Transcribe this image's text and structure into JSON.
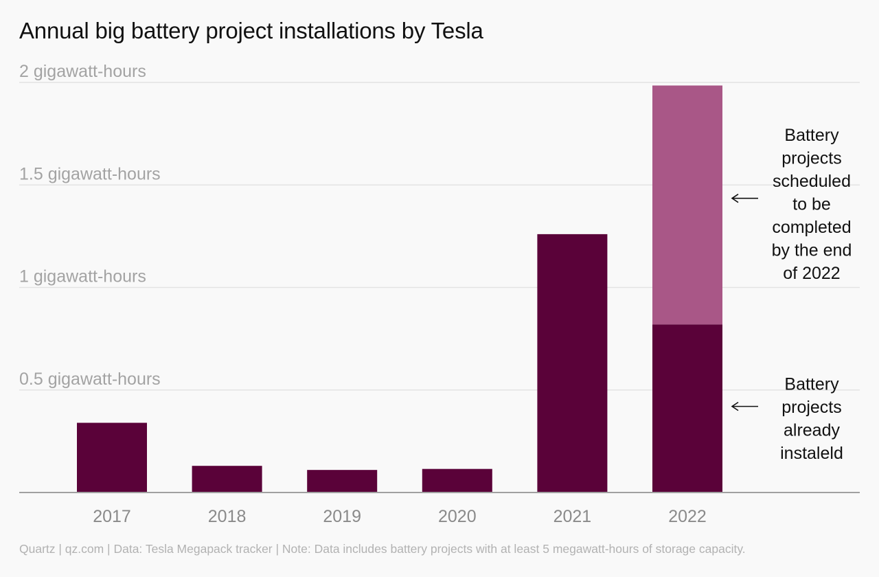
{
  "title": "Annual big battery project installations by Tesla",
  "footer": "Quartz | qz.com | Data: Tesla Megapack tracker | Note: Data includes battery projects with at least 5 megawatt-hours of storage capacity.",
  "colors": {
    "installed": "#5a0239",
    "scheduled": "#a95787",
    "grid": "#e3e3e3",
    "axis": "#a0a0a0"
  },
  "chart_data": {
    "type": "bar",
    "stacked": true,
    "categories": [
      "2017",
      "2018",
      "2019",
      "2020",
      "2021",
      "2022"
    ],
    "series": [
      {
        "values": [
          0.34,
          0.13,
          0.11,
          0.115,
          1.26,
          0.82
        ]
      },
      {
        "values": [
          0,
          0,
          0,
          0,
          0,
          1.165
        ]
      }
    ],
    "ylim": [
      0,
      2
    ],
    "yticks": [
      {
        "value": 2,
        "label": "2 gigawatt-hours"
      },
      {
        "value": 1.5,
        "label": "1.5 gigawatt-hours"
      },
      {
        "value": 1,
        "label": "1 gigawatt-hours"
      },
      {
        "value": 0.5,
        "label": "0.5 gigawatt-hours"
      }
    ],
    "grid": true,
    "annotations": [
      {
        "series_index": 1,
        "lines": [
          "Battery",
          "projects",
          "scheduled",
          "to be",
          "completed",
          "by the end",
          "of 2022"
        ]
      },
      {
        "series_index": 0,
        "lines": [
          "Battery",
          "projects",
          "already",
          "instaleld"
        ]
      }
    ]
  }
}
